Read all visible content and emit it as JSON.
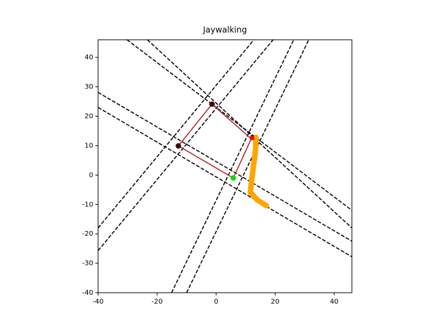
{
  "chart_data": {
    "type": "line",
    "title": "Jaywalking",
    "xlim": [
      -40,
      46
    ],
    "ylim": [
      -40,
      46
    ],
    "xticks": [
      -40,
      -20,
      0,
      20,
      40
    ],
    "yticks": [
      -40,
      -30,
      -20,
      -10,
      0,
      10,
      20,
      30,
      40
    ],
    "series": [
      {
        "style": "dashed",
        "color": "#000000",
        "linewidth": 1.5,
        "x": [
          -30.2,
          46
        ],
        "values": [
          46,
          -12
        ]
      },
      {
        "style": "dashed",
        "color": "#000000",
        "linewidth": 1.5,
        "x": [
          -23.3,
          46
        ],
        "values": [
          46,
          -18
        ]
      },
      {
        "style": "dashed",
        "color": "#000000",
        "linewidth": 1.5,
        "x": [
          -40,
          46
        ],
        "values": [
          28.1,
          -22.5
        ]
      },
      {
        "style": "dashed",
        "color": "#000000",
        "linewidth": 1.5,
        "x": [
          -40,
          46
        ],
        "values": [
          23,
          -27.8
        ]
      },
      {
        "style": "dashed",
        "color": "#000000",
        "linewidth": 1.5,
        "x": [
          -40,
          12.8
        ],
        "values": [
          -18,
          46
        ]
      },
      {
        "style": "dashed",
        "color": "#000000",
        "linewidth": 1.5,
        "x": [
          -40,
          19.3
        ],
        "values": [
          -25.7,
          46
        ]
      },
      {
        "style": "dashed",
        "color": "#000000",
        "linewidth": 1.5,
        "x": [
          -15.1,
          26.3
        ],
        "values": [
          -40,
          46
        ]
      },
      {
        "style": "dashed",
        "color": "#000000",
        "linewidth": 1.5,
        "x": [
          -10,
          31.4
        ],
        "values": [
          -40,
          46
        ]
      },
      {
        "style": "solid",
        "color": "#b22222",
        "linewidth": 1.5,
        "x": [
          -1.4,
          11.9,
          5.8,
          -12.8,
          -1.4
        ],
        "values": [
          24.1,
          12.3,
          -1.0,
          9.9,
          24.1
        ]
      },
      {
        "style": "solid",
        "color": "#ffa500",
        "linewidth": 8,
        "x": [
          13.5,
          13.3,
          12.1,
          11.6,
          14,
          17
        ],
        "values": [
          12.8,
          8.1,
          -1.2,
          -5.9,
          -8.5,
          -10.4
        ]
      },
      {
        "style": "marker",
        "color": "#3b0d0d",
        "size": 4,
        "x": [
          -1.4,
          -12.8
        ],
        "values": [
          24.1,
          9.9
        ]
      },
      {
        "style": "marker",
        "color": "#00dd00",
        "size": 4,
        "x": [
          5.8
        ],
        "values": [
          -1.0
        ]
      },
      {
        "style": "square",
        "color": "#ee0000",
        "size": 3,
        "x": [
          12.2
        ],
        "values": [
          12.6
        ]
      }
    ]
  }
}
